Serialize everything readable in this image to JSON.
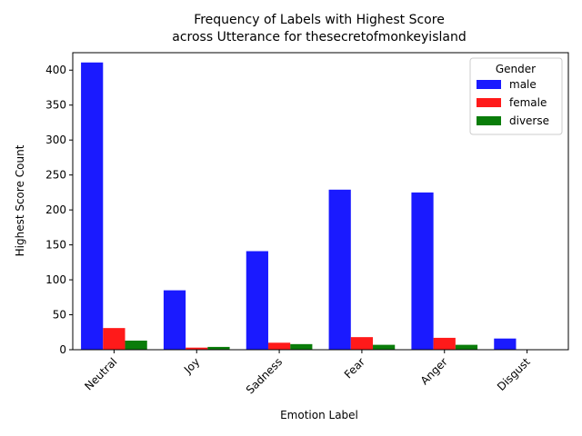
{
  "chart_data": {
    "type": "bar",
    "title_line1": "Frequency of Labels with Highest Score",
    "title_line2": "across Utterance for thesecretofmonkeyisland",
    "xlabel": "Emotion Label",
    "ylabel": "Highest Score Count",
    "categories": [
      "Neutral",
      "Joy",
      "Sadness",
      "Fear",
      "Anger",
      "Disgust"
    ],
    "ylim": [
      0,
      425
    ],
    "yticks": [
      0,
      50,
      100,
      150,
      200,
      250,
      300,
      350,
      400
    ],
    "grid": false,
    "legend": {
      "title": "Gender",
      "position": "top-right"
    },
    "series": [
      {
        "name": "male",
        "color": "#1a1aff",
        "values": [
          411,
          85,
          141,
          229,
          225,
          16
        ]
      },
      {
        "name": "female",
        "color": "#ff1a1a",
        "values": [
          31,
          3,
          10,
          18,
          17,
          0
        ]
      },
      {
        "name": "diverse",
        "color": "#0a7d0a",
        "values": [
          13,
          4,
          8,
          7,
          7,
          0
        ]
      }
    ]
  }
}
